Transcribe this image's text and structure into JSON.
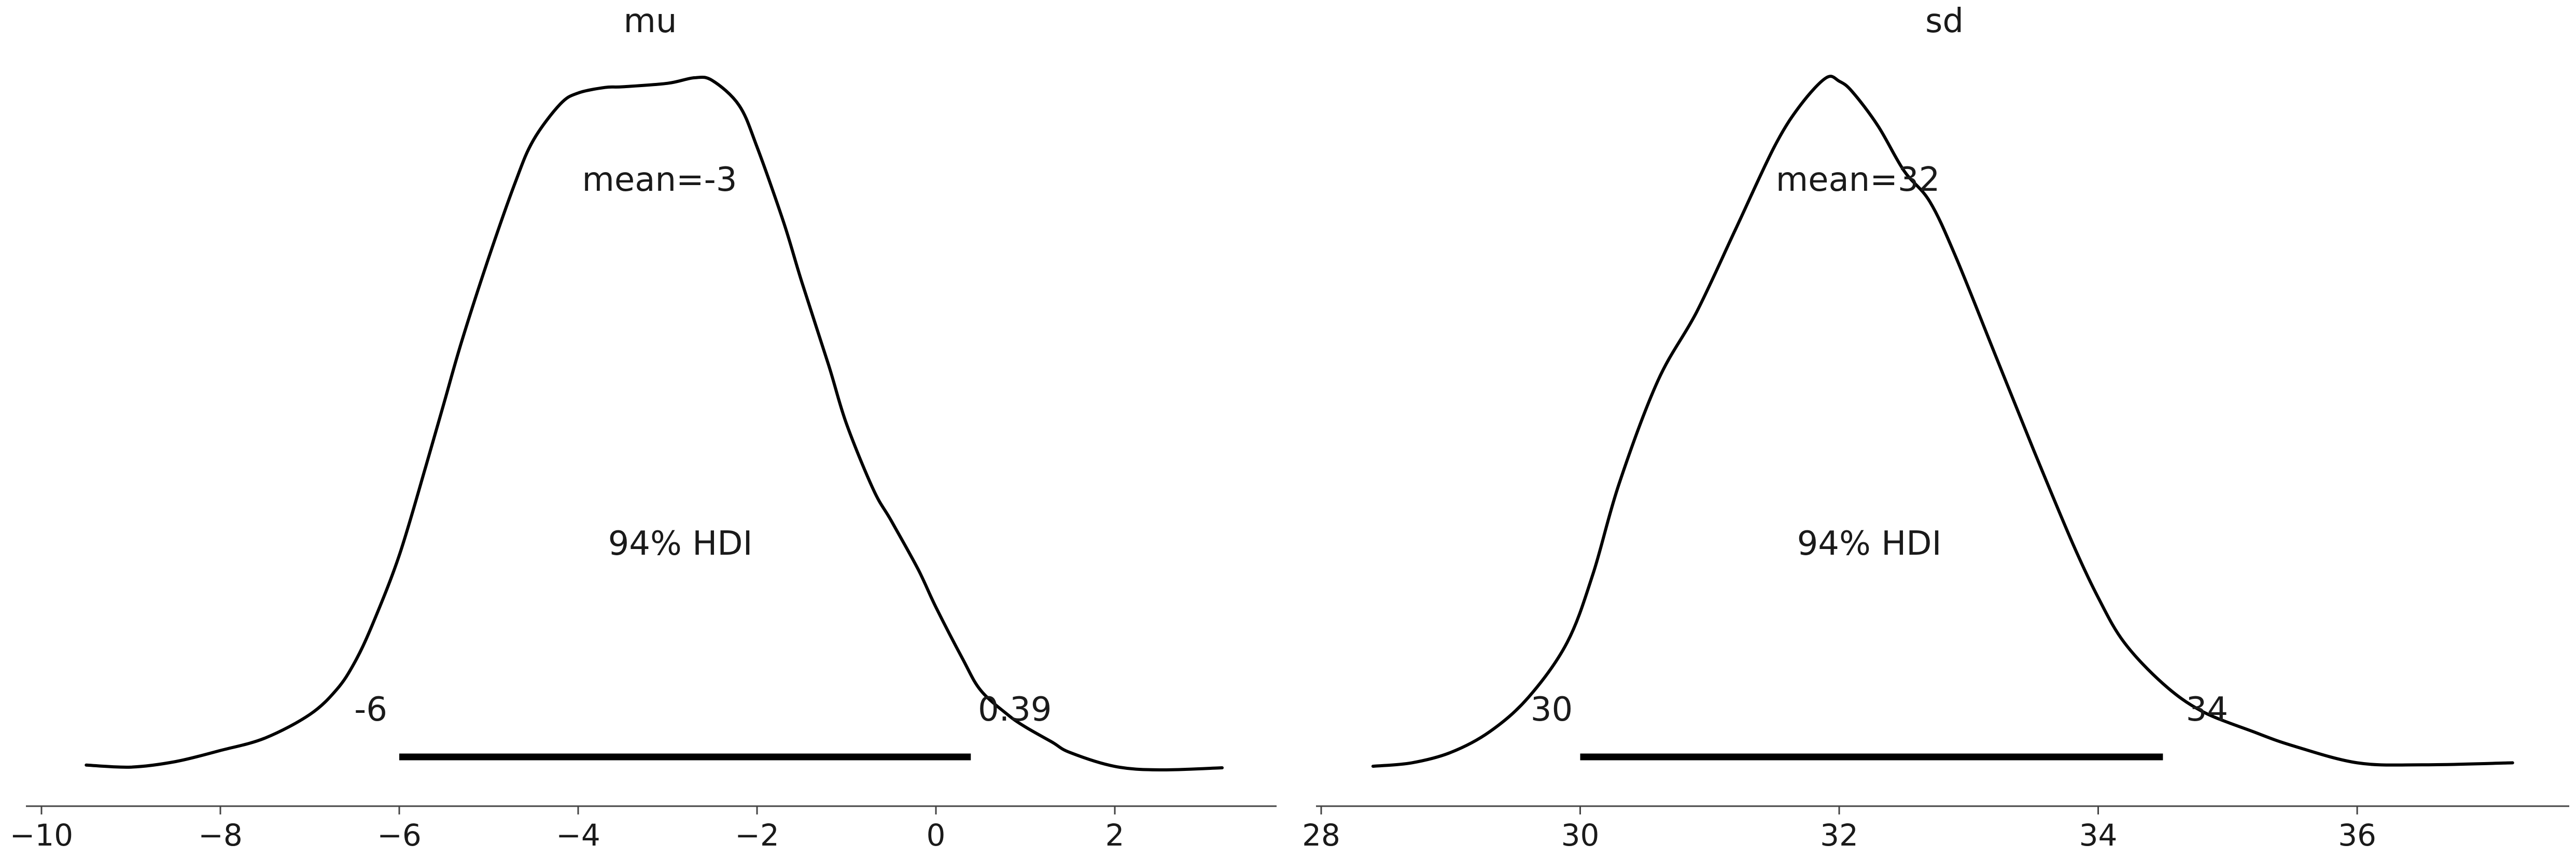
{
  "chart_data": [
    {
      "type": "area",
      "title": "mu",
      "x_range": [
        -10.2,
        3.8
      ],
      "xticks": [
        -10,
        -8,
        -6,
        -4,
        -2,
        0,
        2
      ],
      "xtick_labels": [
        "−10",
        "−8",
        "−6",
        "−4",
        "−2",
        "0",
        "2"
      ],
      "density": {
        "x": [
          -9.5,
          -9.0,
          -8.5,
          -8.0,
          -7.5,
          -7.0,
          -6.7,
          -6.5,
          -6.3,
          -6.0,
          -5.7,
          -5.5,
          -5.3,
          -5.0,
          -4.7,
          -4.5,
          -4.2,
          -4.0,
          -3.7,
          -3.5,
          -3.0,
          -2.7,
          -2.5,
          -2.2,
          -2.0,
          -1.7,
          -1.5,
          -1.2,
          -1.0,
          -0.7,
          -0.5,
          -0.2,
          0.0,
          0.3,
          0.5,
          0.8,
          1.0,
          1.3,
          1.5,
          2.0,
          2.5,
          3.2
        ],
        "y": [
          0.007,
          0.004,
          0.012,
          0.028,
          0.046,
          0.08,
          0.116,
          0.155,
          0.21,
          0.31,
          0.44,
          0.53,
          0.62,
          0.74,
          0.85,
          0.91,
          0.962,
          0.978,
          0.986,
          0.987,
          0.992,
          1.0,
          0.996,
          0.96,
          0.9,
          0.79,
          0.705,
          0.585,
          0.5,
          0.405,
          0.36,
          0.29,
          0.235,
          0.16,
          0.115,
          0.08,
          0.062,
          0.04,
          0.025,
          0.005,
          0.0,
          0.003
        ]
      },
      "mean_label": "mean=-3",
      "hdi_label": "94% HDI",
      "hdi": {
        "low": -6.0,
        "high": 0.39,
        "low_label": "-6",
        "high_label": "0.39"
      }
    },
    {
      "type": "area",
      "title": "sd",
      "x_range": [
        27.9,
        38.0
      ],
      "xticks": [
        28,
        30,
        32,
        34,
        36
      ],
      "xtick_labels": [
        "28",
        "30",
        "32",
        "34",
        "36"
      ],
      "density": {
        "x": [
          28.4,
          28.7,
          29.0,
          29.3,
          29.6,
          29.9,
          30.1,
          30.3,
          30.6,
          30.9,
          31.2,
          31.5,
          31.7,
          31.9,
          32.0,
          32.1,
          32.3,
          32.5,
          32.7,
          32.9,
          33.2,
          33.5,
          33.8,
          34.0,
          34.2,
          34.5,
          34.8,
          35.2,
          35.5,
          36.0,
          36.5,
          37.2
        ],
        "y": [
          0.0,
          0.005,
          0.02,
          0.05,
          0.1,
          0.18,
          0.28,
          0.41,
          0.56,
          0.66,
          0.78,
          0.9,
          0.96,
          1.0,
          0.995,
          0.98,
          0.93,
          0.865,
          0.82,
          0.74,
          0.6,
          0.46,
          0.325,
          0.245,
          0.18,
          0.12,
          0.08,
          0.05,
          0.03,
          0.005,
          0.002,
          0.005
        ]
      },
      "mean_label": "mean=32",
      "hdi_label": "94% HDI",
      "hdi": {
        "low": 30.0,
        "high": 34.5,
        "low_label": "30",
        "high_label": "34"
      }
    }
  ]
}
